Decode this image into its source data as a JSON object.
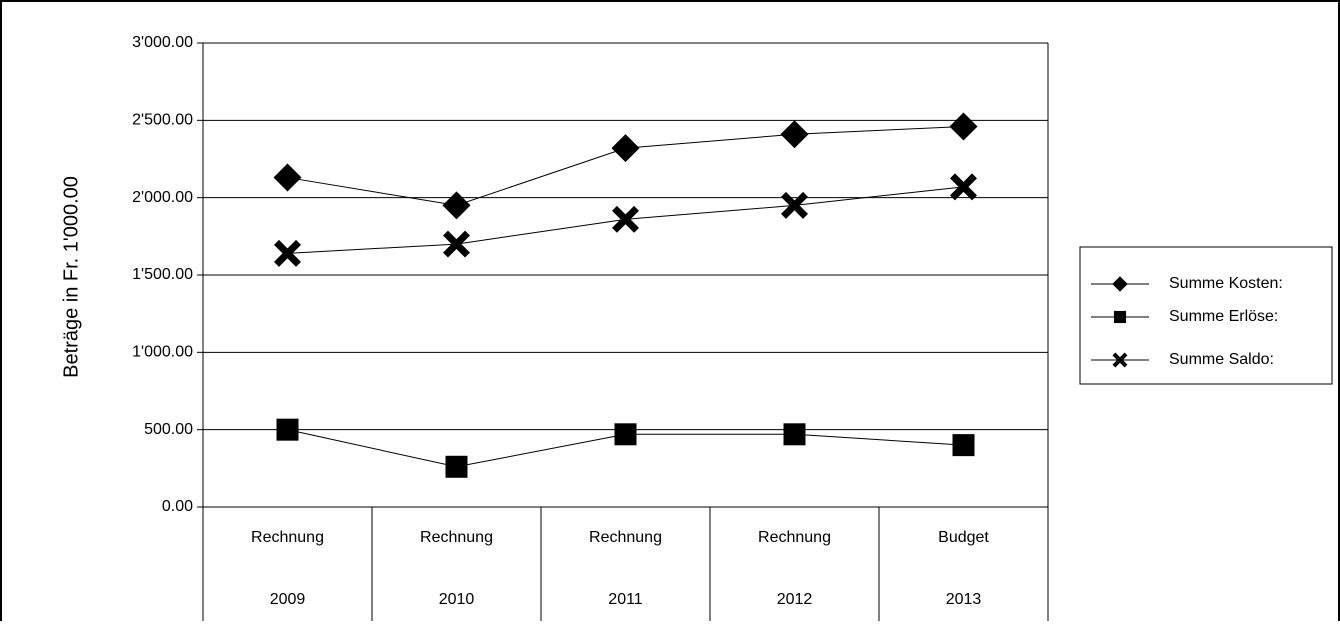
{
  "chart_data": {
    "type": "line",
    "title": "",
    "ylabel": "Beträge in Fr. 1'000.00",
    "xlabel": "",
    "ylim": [
      0,
      3000
    ],
    "yticks": [
      "0.00",
      "500.00",
      "1'000.00",
      "1'500.00",
      "2'000.00",
      "2'500.00",
      "3'000.00"
    ],
    "categories": [
      {
        "row1": "Rechnung",
        "row2": "2009"
      },
      {
        "row1": "Rechnung",
        "row2": "2010"
      },
      {
        "row1": "Rechnung",
        "row2": "2011"
      },
      {
        "row1": "Rechnung",
        "row2": "2012"
      },
      {
        "row1": "Budget",
        "row2": "2013"
      }
    ],
    "series": [
      {
        "name": "Summe Kosten:",
        "marker": "diamond",
        "values": [
          2130,
          1950,
          2320,
          2410,
          2460
        ]
      },
      {
        "name": "Summe Erlöse:",
        "marker": "square",
        "values": [
          500,
          260,
          470,
          470,
          400
        ]
      },
      {
        "name": "Summe Saldo:",
        "marker": "x",
        "values": [
          1640,
          1700,
          1860,
          1950,
          2070
        ]
      }
    ],
    "grid": true,
    "legend": "right"
  }
}
